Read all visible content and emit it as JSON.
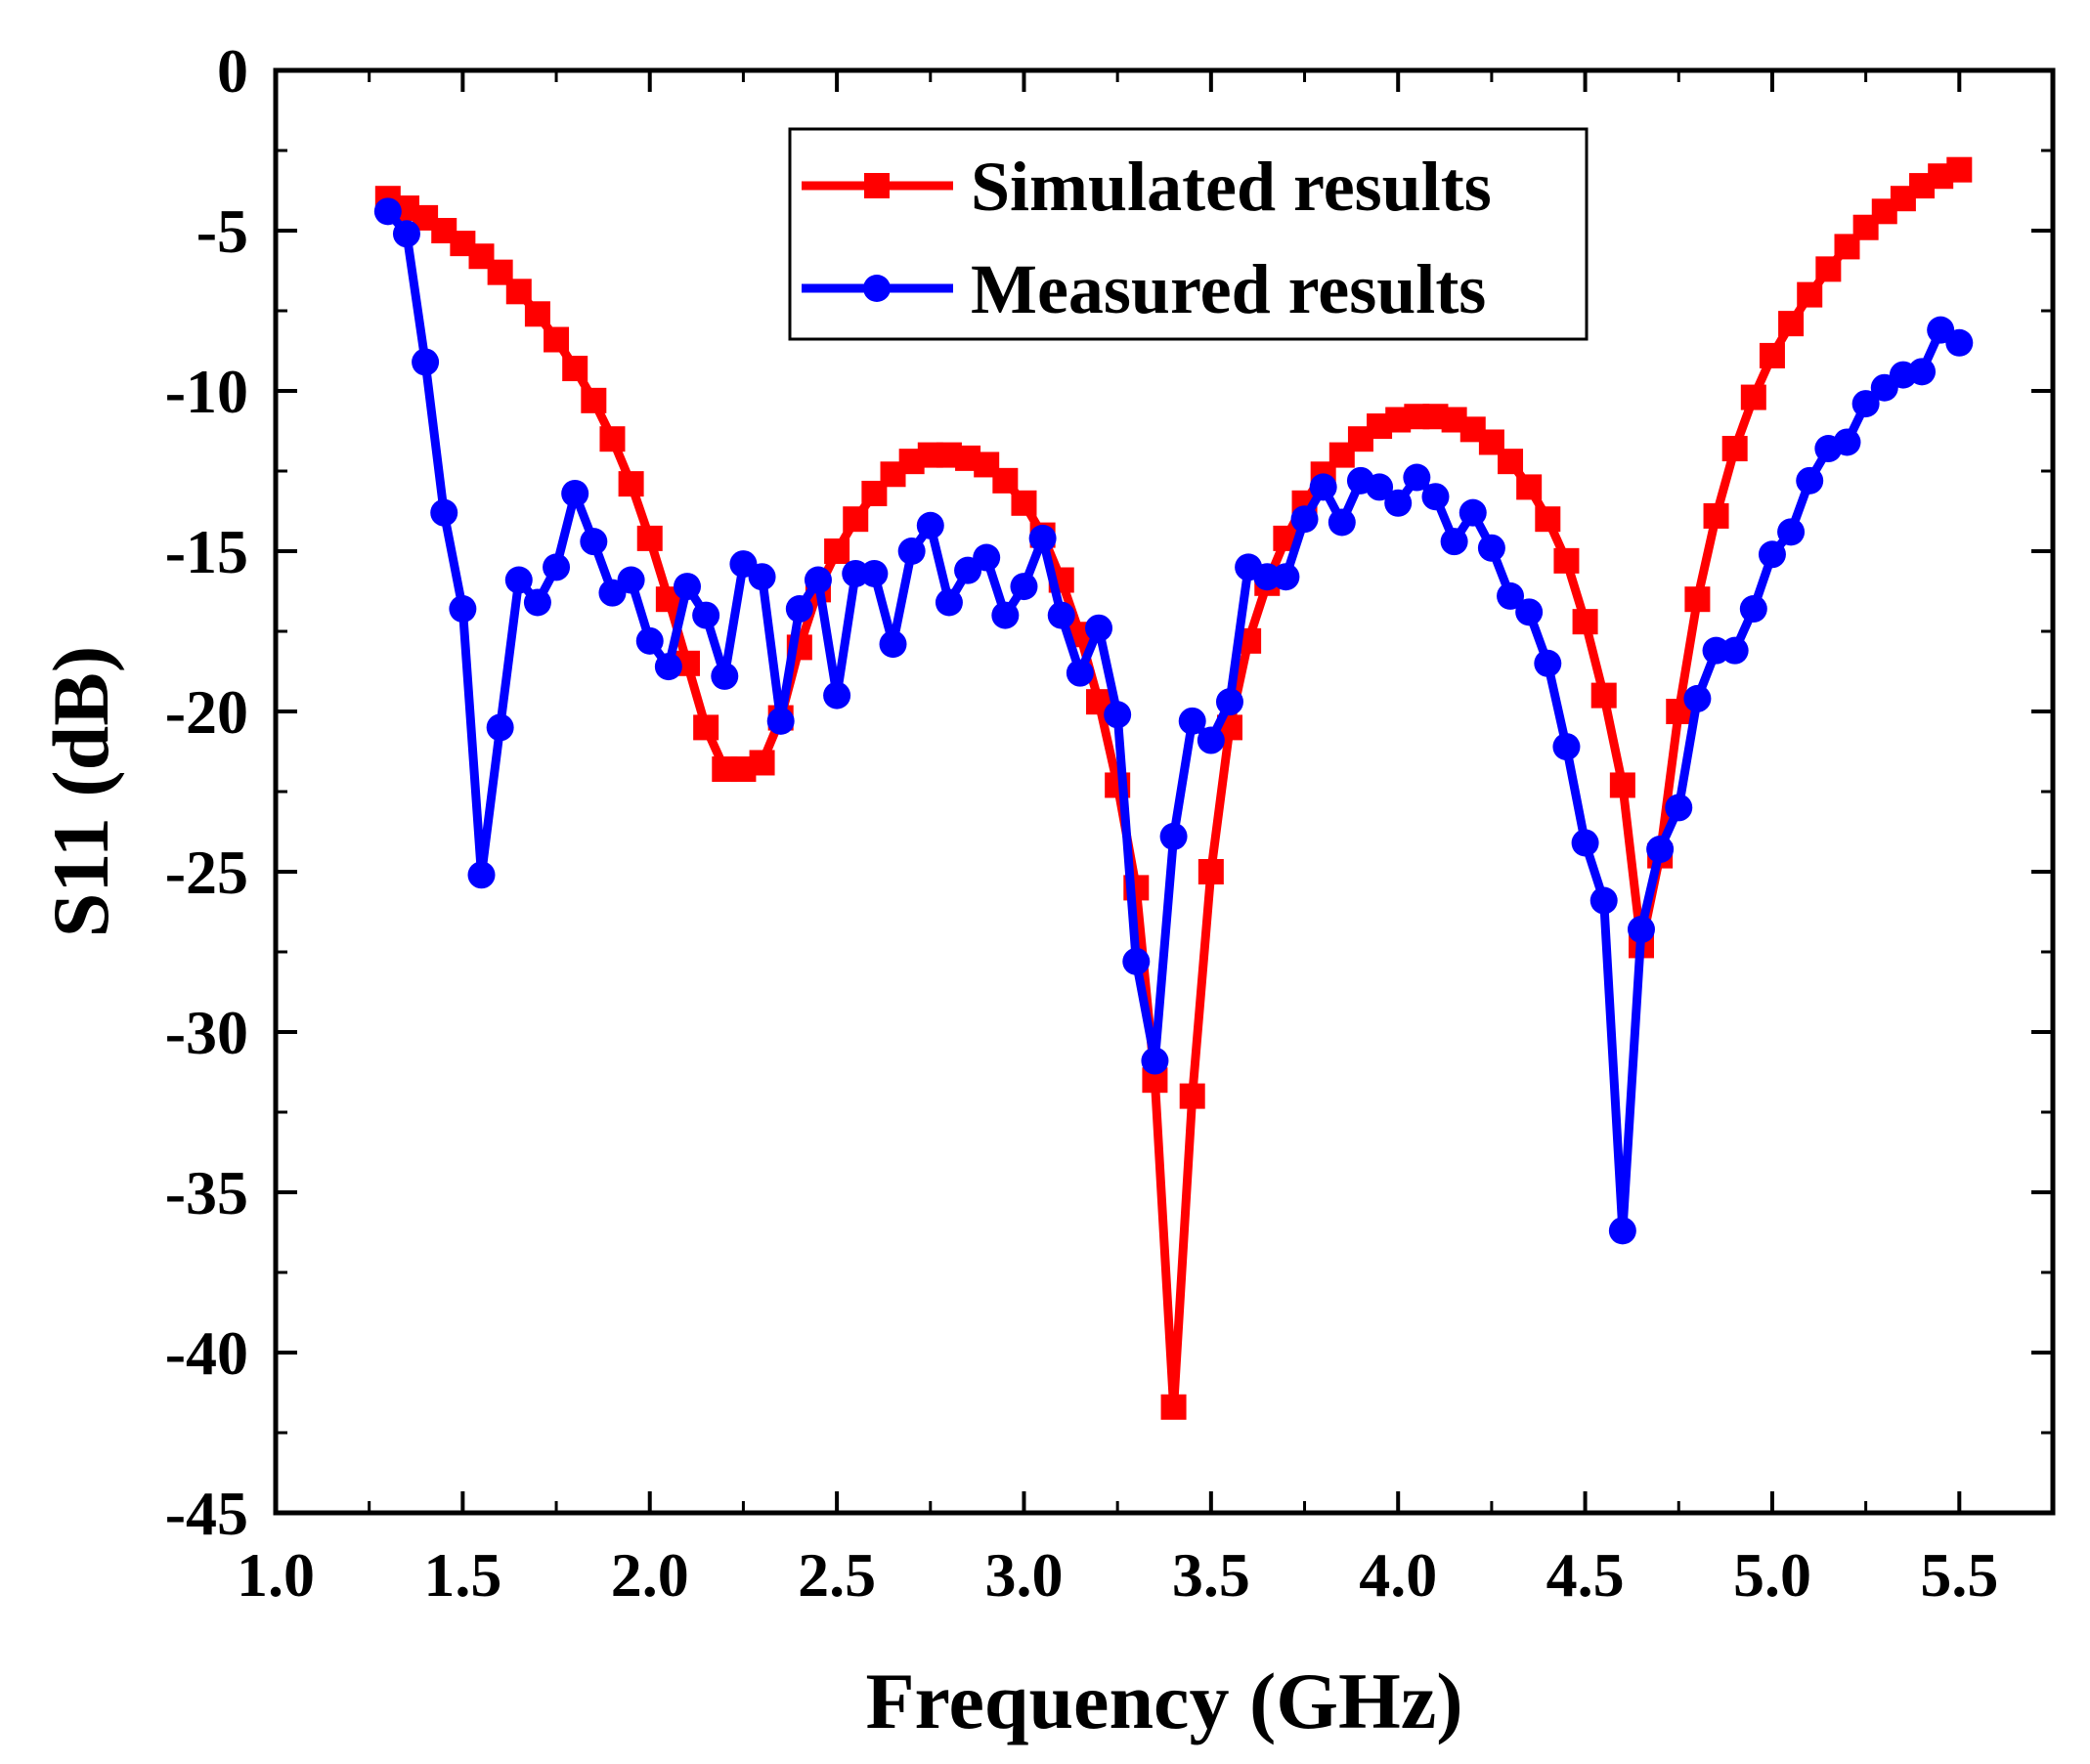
{
  "chart_data": {
    "type": "line",
    "title": "",
    "xlabel": "Frequency (GHz)",
    "ylabel": "S11 (dB)",
    "xlim": [
      1.0,
      5.75
    ],
    "ylim": [
      -45,
      0
    ],
    "xticks": [
      "1.0",
      "1.5",
      "2.0",
      "2.5",
      "3.0",
      "3.5",
      "4.0",
      "4.5",
      "5.0",
      "5.5"
    ],
    "xtick_values": [
      1.0,
      1.5,
      2.0,
      2.5,
      3.0,
      3.5,
      4.0,
      4.5,
      5.0,
      5.5
    ],
    "yticks": [
      "0",
      "-5",
      "-10",
      "-15",
      "-20",
      "-25",
      "-30",
      "-35",
      "-40",
      "-45"
    ],
    "ytick_values": [
      0,
      -5,
      -10,
      -15,
      -20,
      -25,
      -30,
      -35,
      -40,
      -45
    ],
    "legend_position": "top-center",
    "series": [
      {
        "name": "Simulated results",
        "color": "#ff0000",
        "marker": "square",
        "x": [
          1.3,
          1.35,
          1.4,
          1.45,
          1.5,
          1.55,
          1.6,
          1.65,
          1.7,
          1.75,
          1.8,
          1.85,
          1.9,
          1.95,
          2.0,
          2.05,
          2.1,
          2.15,
          2.2,
          2.25,
          2.3,
          2.35,
          2.4,
          2.45,
          2.5,
          2.55,
          2.6,
          2.65,
          2.7,
          2.75,
          2.8,
          2.85,
          2.9,
          2.95,
          3.0,
          3.05,
          3.1,
          3.15,
          3.2,
          3.25,
          3.3,
          3.35,
          3.4,
          3.45,
          3.5,
          3.55,
          3.6,
          3.65,
          3.7,
          3.75,
          3.8,
          3.85,
          3.9,
          3.95,
          4.0,
          4.05,
          4.1,
          4.15,
          4.2,
          4.25,
          4.3,
          4.35,
          4.4,
          4.45,
          4.5,
          4.55,
          4.6,
          4.65,
          4.7,
          4.75,
          4.8,
          4.85,
          4.9,
          4.95,
          5.0,
          5.05,
          5.1,
          5.15,
          5.2,
          5.25,
          5.3,
          5.35,
          5.4,
          5.45,
          5.5
        ],
        "y": [
          -4.0,
          -4.3,
          -4.6,
          -5.0,
          -5.4,
          -5.8,
          -6.3,
          -6.9,
          -7.6,
          -8.4,
          -9.3,
          -10.3,
          -11.5,
          -12.9,
          -14.6,
          -16.5,
          -18.5,
          -20.5,
          -21.8,
          -21.8,
          -21.6,
          -20.2,
          -18.0,
          -16.2,
          -15.0,
          -14.0,
          -13.2,
          -12.6,
          -12.2,
          -12.0,
          -12.0,
          -12.1,
          -12.3,
          -12.8,
          -13.5,
          -14.5,
          -15.9,
          -17.6,
          -19.7,
          -22.3,
          -25.5,
          -31.5,
          -41.7,
          -32.0,
          -25.0,
          -20.5,
          -17.8,
          -16.0,
          -14.6,
          -13.5,
          -12.6,
          -12.0,
          -11.5,
          -11.1,
          -10.9,
          -10.8,
          -10.8,
          -10.9,
          -11.2,
          -11.6,
          -12.2,
          -13.0,
          -14.0,
          -15.3,
          -17.2,
          -19.5,
          -22.3,
          -27.3,
          -24.5,
          -20.0,
          -16.5,
          -13.9,
          -11.8,
          -10.2,
          -8.9,
          -7.9,
          -7.0,
          -6.2,
          -5.5,
          -4.9,
          -4.4,
          -4.0,
          -3.6,
          -3.3,
          -3.1
        ]
      },
      {
        "name": "Measured results",
        "color": "#0000ff",
        "marker": "circle",
        "x": [
          1.3,
          1.35,
          1.4,
          1.45,
          1.5,
          1.55,
          1.6,
          1.65,
          1.7,
          1.75,
          1.8,
          1.85,
          1.9,
          1.95,
          2.0,
          2.05,
          2.1,
          2.15,
          2.2,
          2.25,
          2.3,
          2.35,
          2.4,
          2.45,
          2.5,
          2.55,
          2.6,
          2.65,
          2.7,
          2.75,
          2.8,
          2.85,
          2.9,
          2.95,
          3.0,
          3.05,
          3.1,
          3.15,
          3.2,
          3.25,
          3.3,
          3.35,
          3.4,
          3.45,
          3.5,
          3.55,
          3.6,
          3.65,
          3.7,
          3.75,
          3.8,
          3.85,
          3.9,
          3.95,
          4.0,
          4.05,
          4.1,
          4.15,
          4.2,
          4.25,
          4.3,
          4.35,
          4.4,
          4.45,
          4.5,
          4.55,
          4.6,
          4.65,
          4.7,
          4.75,
          4.8,
          4.85,
          4.9,
          4.95,
          5.0,
          5.05,
          5.1,
          5.15,
          5.2,
          5.25,
          5.3,
          5.35,
          5.4,
          5.45,
          5.5
        ],
        "y": [
          -4.4,
          -5.1,
          -9.1,
          -13.8,
          -16.8,
          -25.1,
          -20.5,
          -15.9,
          -16.6,
          -15.5,
          -13.2,
          -14.7,
          -16.3,
          -15.9,
          -17.8,
          -18.6,
          -16.1,
          -17.0,
          -18.9,
          -15.4,
          -15.8,
          -20.3,
          -16.8,
          -15.9,
          -19.5,
          -15.7,
          -15.7,
          -17.9,
          -15.0,
          -14.2,
          -16.6,
          -15.6,
          -15.2,
          -17.0,
          -16.1,
          -14.6,
          -17.0,
          -18.8,
          -17.4,
          -20.1,
          -27.8,
          -30.9,
          -23.9,
          -20.3,
          -20.9,
          -19.7,
          -15.5,
          -15.8,
          -15.8,
          -14.0,
          -13.0,
          -14.1,
          -12.8,
          -13.0,
          -13.5,
          -12.7,
          -13.3,
          -14.7,
          -13.8,
          -14.9,
          -16.4,
          -16.9,
          -18.5,
          -21.1,
          -24.1,
          -25.9,
          -36.2,
          -26.8,
          -24.3,
          -23.0,
          -19.6,
          -18.1,
          -18.1,
          -16.8,
          -15.1,
          -14.4,
          -12.8,
          -11.8,
          -11.6,
          -10.4,
          -9.9,
          -9.5,
          -9.4,
          -8.1,
          -8.5
        ]
      }
    ]
  }
}
